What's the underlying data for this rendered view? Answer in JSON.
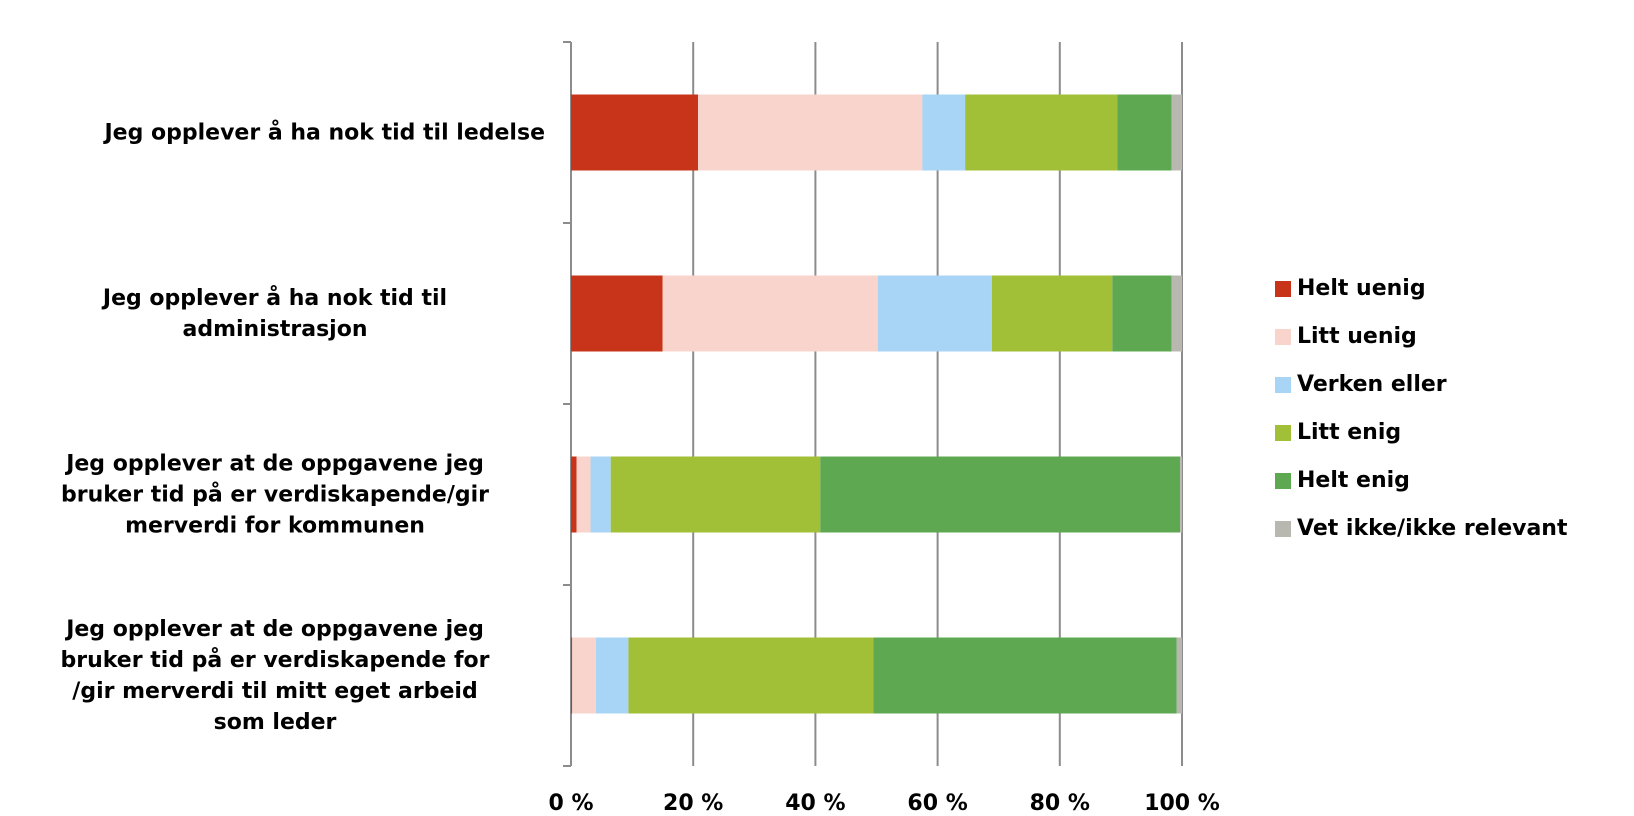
{
  "chart_data": {
    "type": "stacked-bar-horizontal",
    "categories": [
      "Jeg opplever å ha nok tid til ledelse",
      "Jeg opplever å ha nok tid til\nadministrasjon",
      "Jeg opplever at de oppgavene jeg\nbruker tid på er verdiskapende/gir\nmerverdi for kommunen",
      "Jeg opplever at de oppgavene jeg\nbruker tid på er verdiskapende for\n/gir merverdi til mitt eget arbeid\nsom leder"
    ],
    "series": [
      {
        "name": "Helt uenig",
        "color": "#c8341a",
        "values": [
          20.8,
          15.0,
          0.9,
          0.2
        ]
      },
      {
        "name": "Litt uenig",
        "color": "#f9d4cc",
        "values": [
          36.7,
          35.2,
          2.3,
          3.9
        ]
      },
      {
        "name": "Verken eller",
        "color": "#a8d4f5",
        "values": [
          7.0,
          18.7,
          3.3,
          5.3
        ]
      },
      {
        "name": "Litt enig",
        "color": "#a2c037",
        "values": [
          24.9,
          19.7,
          34.3,
          40.1
        ]
      },
      {
        "name": "Helt enig",
        "color": "#5ea852",
        "values": [
          8.9,
          9.7,
          58.9,
          49.6
        ]
      },
      {
        "name": "Vet ikke/ikke relevant",
        "color": "#b8b8b0",
        "values": [
          1.7,
          1.7,
          0.3,
          0.9
        ]
      }
    ],
    "xlim": [
      0,
      100
    ],
    "xticks": [
      {
        "value": 0,
        "label": "0 %"
      },
      {
        "value": 20,
        "label": "20 %"
      },
      {
        "value": 40,
        "label": "40 %"
      },
      {
        "value": 60,
        "label": "60 %"
      },
      {
        "value": 80,
        "label": "80 %"
      },
      {
        "value": 100,
        "label": "100 %"
      }
    ],
    "grid": true,
    "legend": "right"
  }
}
